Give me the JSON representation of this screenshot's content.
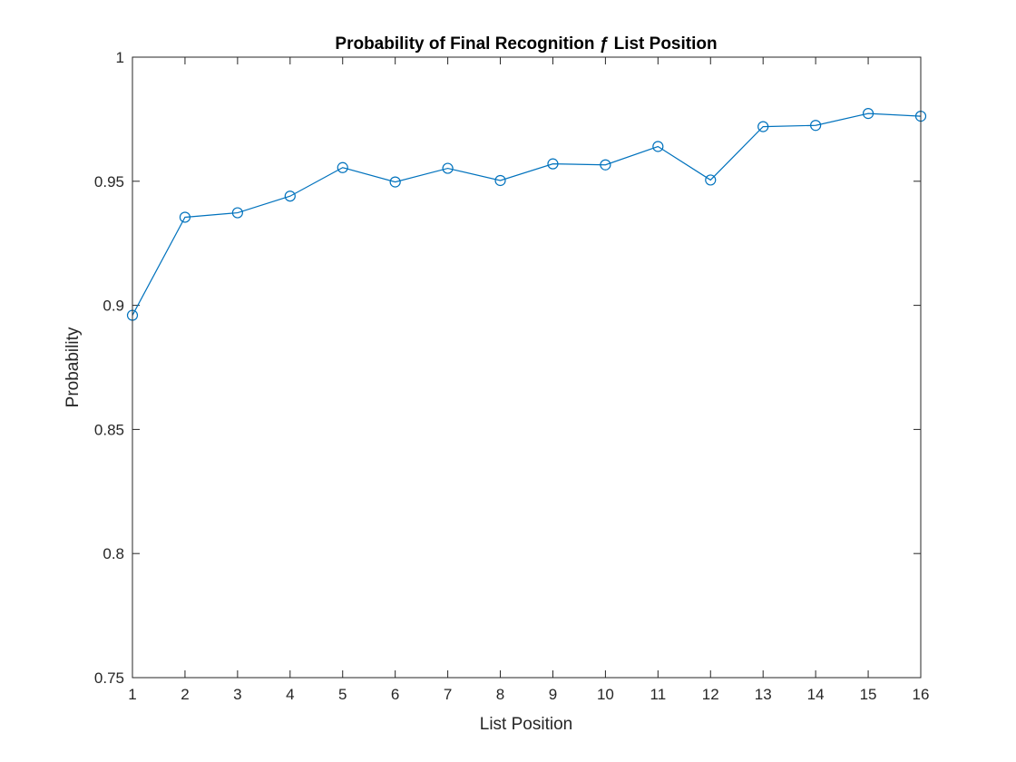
{
  "chart_data": {
    "type": "line",
    "title": "Probability of Final Recognition ƒ List Position",
    "xlabel": "List Position",
    "ylabel": "Probability",
    "xlim": [
      1,
      16
    ],
    "ylim": [
      0.75,
      1
    ],
    "xticks": [
      1,
      2,
      3,
      4,
      5,
      6,
      7,
      8,
      9,
      10,
      11,
      12,
      13,
      14,
      15,
      16
    ],
    "yticks": [
      0.75,
      0.8,
      0.85,
      0.9,
      0.95,
      1
    ],
    "ytick_labels": [
      "0.75",
      "0.8",
      "0.85",
      "0.9",
      "0.95",
      "1"
    ],
    "grid": false,
    "marker": "circle",
    "color": "#0072BD",
    "series": [
      {
        "x": [
          1,
          2,
          3,
          4,
          5,
          6,
          7,
          8,
          9,
          10,
          11,
          12,
          13,
          14,
          15,
          16
        ],
        "values": [
          0.896,
          0.9355,
          0.9373,
          0.944,
          0.9555,
          0.9497,
          0.9552,
          0.9503,
          0.957,
          0.9566,
          0.964,
          0.9505,
          0.972,
          0.9725,
          0.9773,
          0.9762
        ]
      }
    ]
  }
}
